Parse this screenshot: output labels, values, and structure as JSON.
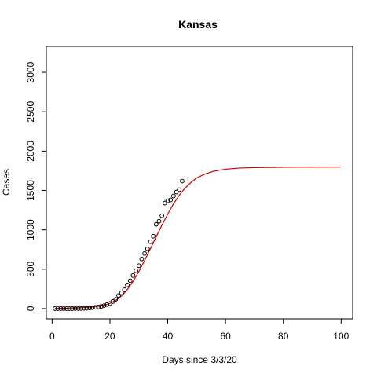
{
  "chart_data": {
    "type": "scatter",
    "title": "Kansas",
    "xlabel": "Days since 3/3/20",
    "ylabel": "Cases",
    "xlim": [
      -2,
      104
    ],
    "ylim": [
      -130,
      3330
    ],
    "xticks": [
      0,
      20,
      40,
      60,
      80,
      100
    ],
    "yticks": [
      0,
      500,
      1000,
      1500,
      2000,
      2500,
      3000
    ],
    "grid": false,
    "legend": "none",
    "colors": {
      "points": "#000000",
      "fit": "#cc0000"
    },
    "points": {
      "x": [
        1,
        2,
        3,
        4,
        5,
        6,
        7,
        8,
        9,
        10,
        11,
        12,
        13,
        14,
        15,
        16,
        17,
        18,
        19,
        20,
        21,
        22,
        23,
        24,
        25,
        26,
        27,
        28,
        29,
        30,
        31,
        32,
        33,
        34,
        35,
        36,
        37,
        38,
        39,
        40,
        41,
        42,
        43,
        44,
        45
      ],
      "y": [
        0,
        0,
        0,
        0,
        0,
        0,
        0,
        1,
        1,
        1,
        4,
        5,
        8,
        11,
        17,
        21,
        28,
        39,
        52,
        65,
        90,
        118,
        165,
        200,
        240,
        300,
        355,
        420,
        480,
        545,
        630,
        700,
        760,
        850,
        920,
        1070,
        1110,
        1180,
        1340,
        1370,
        1380,
        1430,
        1480,
        1510,
        1620
      ]
    },
    "fit": {
      "x": [
        1,
        5,
        10,
        15,
        18,
        20,
        22,
        24,
        26,
        28,
        30,
        32,
        34,
        36,
        38,
        40,
        42,
        44,
        46,
        48,
        50,
        53,
        56,
        60,
        65,
        70,
        80,
        90,
        100
      ],
      "y": [
        2,
        6,
        12,
        26,
        45,
        66,
        105,
        160,
        240,
        345,
        470,
        610,
        760,
        910,
        1060,
        1200,
        1330,
        1440,
        1530,
        1600,
        1660,
        1710,
        1745,
        1770,
        1785,
        1790,
        1795,
        1797,
        1798
      ]
    }
  }
}
